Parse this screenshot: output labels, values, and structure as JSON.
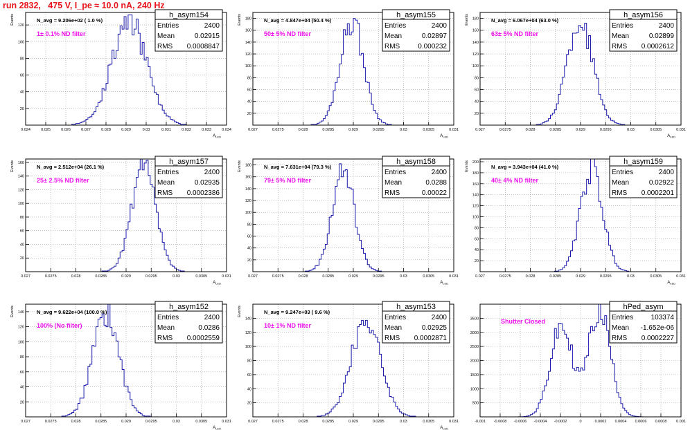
{
  "title": "run 2832,   475 V, I_pe ≈ 10.0 nA, 240 Hz",
  "colors": {
    "hist": "#1a1aaa",
    "title": "#e8141b",
    "filter": "#ee11ee",
    "frame": "#000000",
    "grid": "#9a9a9a"
  },
  "stat_labels": [
    "Entries",
    "Mean",
    "RMS"
  ],
  "chart_data": [
    {
      "type": "histogram",
      "name": "h_asym154",
      "navg": "N_avg = 9.206e+02 ( 1.0 %)",
      "filter": "1± 0.1% ND filter",
      "entries": "2400",
      "mean": "0.02915",
      "rms": "0.0008847",
      "xlabel": "A_LED",
      "ylabel": "Events",
      "xlim": [
        0.024,
        0.034
      ],
      "ylim": [
        0,
        135
      ],
      "xticks": [
        0.024,
        0.025,
        0.026,
        0.027,
        0.028,
        0.029,
        0.03,
        0.031,
        0.032,
        0.033,
        0.034
      ],
      "xticklabels": [
        "0.024",
        "0.025",
        "0.026",
        "0.027",
        "0.028",
        "0.029",
        "0.03",
        "0.031",
        "0.032",
        "0.033",
        "0.034"
      ],
      "yticks": [
        20,
        40,
        60,
        80,
        100,
        120
      ],
      "yticklabels": [
        "20",
        "40",
        "60",
        "80",
        "100",
        "120"
      ],
      "grid": true,
      "dist": {
        "model": "gauss",
        "mean": 0.02915,
        "sigma": 0.00087,
        "peak": 124,
        "seed": 154
      }
    },
    {
      "type": "histogram",
      "name": "h_asym155",
      "navg": "N_avg = 4.847e+04 (50.4 %)",
      "filter": "50± 5% ND filter",
      "entries": "2400",
      "mean": "0.02897",
      "rms": "0.000232",
      "xlabel": "A_LED",
      "ylabel": "Events",
      "xlim": [
        0.027,
        0.031
      ],
      "ylim": [
        0,
        190
      ],
      "xticks": [
        0.027,
        0.0275,
        0.028,
        0.0285,
        0.029,
        0.0295,
        0.03,
        0.0305,
        0.031
      ],
      "xticklabels": [
        "0.027",
        "0.0275",
        "0.028",
        "0.0285",
        "0.029",
        "0.0295",
        "0.03",
        "0.0305",
        "0.031"
      ],
      "yticks": [
        20,
        40,
        60,
        80,
        100,
        120,
        140,
        160,
        180
      ],
      "yticklabels": [
        "20",
        "40",
        "60",
        "80",
        "100",
        "120",
        "140",
        "160",
        "180"
      ],
      "grid": true,
      "dist": {
        "model": "gauss",
        "mean": 0.02897,
        "sigma": 0.000232,
        "peak": 178,
        "seed": 155
      }
    },
    {
      "type": "histogram",
      "name": "h_asym156",
      "navg": "N_avg = 6.067e+04 (63.0 %)",
      "filter": "63± 5% ND filter",
      "entries": "2400",
      "mean": "0.02899",
      "rms": "0.0002612",
      "xlabel": "A_LED",
      "ylabel": "Events",
      "xlim": [
        0.027,
        0.031
      ],
      "ylim": [
        0,
        190
      ],
      "xticks": [
        0.027,
        0.0275,
        0.028,
        0.0285,
        0.029,
        0.0295,
        0.03,
        0.0305,
        0.031
      ],
      "xticklabels": [
        "0.027",
        "0.0275",
        "0.028",
        "0.0285",
        "0.029",
        "0.0295",
        "0.03",
        "0.0305",
        "0.031"
      ],
      "yticks": [
        20,
        40,
        60,
        80,
        100,
        120,
        140,
        160,
        180
      ],
      "yticklabels": [
        "20",
        "40",
        "60",
        "80",
        "100",
        "120",
        "140",
        "160",
        "180"
      ],
      "grid": true,
      "dist": {
        "model": "gauss",
        "mean": 0.02899,
        "sigma": 0.00026,
        "peak": 176,
        "seed": 156
      }
    },
    {
      "type": "histogram",
      "name": "h_asym157",
      "navg": "N_avg = 2.512e+04 (26.1 %)",
      "filter": "25± 2.5% ND filter",
      "entries": "2400",
      "mean": "0.02935",
      "rms": "0.0002386",
      "xlabel": "A_LED",
      "ylabel": "Events",
      "xlim": [
        0.027,
        0.031
      ],
      "ylim": [
        0,
        165
      ],
      "xticks": [
        0.027,
        0.0275,
        0.028,
        0.0285,
        0.029,
        0.0295,
        0.03,
        0.0305,
        0.031
      ],
      "xticklabels": [
        "0.027",
        "0.0275",
        "0.028",
        "0.0285",
        "0.029",
        "0.0295",
        "0.03",
        "0.0305",
        "0.031"
      ],
      "yticks": [
        20,
        40,
        60,
        80,
        100,
        120,
        140,
        160
      ],
      "yticklabels": [
        "20",
        "40",
        "60",
        "80",
        "100",
        "120",
        "140",
        "160"
      ],
      "grid": true,
      "dist": {
        "model": "gauss",
        "mean": 0.02935,
        "sigma": 0.00024,
        "peak": 152,
        "seed": 157
      }
    },
    {
      "type": "histogram",
      "name": "h_asym158",
      "navg": "N_avg = 7.631e+04 (79.3 %)",
      "filter": "79± 5% ND filter",
      "entries": "2400",
      "mean": "0.0288",
      "rms": "0.00022",
      "xlabel": "A_LED",
      "ylabel": "Events",
      "xlim": [
        0.027,
        0.031
      ],
      "ylim": [
        0,
        190
      ],
      "xticks": [
        0.027,
        0.0275,
        0.028,
        0.0285,
        0.029,
        0.0295,
        0.03,
        0.0305,
        0.031
      ],
      "xticklabels": [
        "0.027",
        "0.0275",
        "0.028",
        "0.0285",
        "0.029",
        "0.0295",
        "0.03",
        "0.0305",
        "0.031"
      ],
      "yticks": [
        20,
        40,
        60,
        80,
        100,
        120,
        140,
        160,
        180
      ],
      "yticklabels": [
        "20",
        "40",
        "60",
        "80",
        "100",
        "120",
        "140",
        "160",
        "180"
      ],
      "grid": true,
      "dist": {
        "model": "gauss",
        "mean": 0.0288,
        "sigma": 0.00022,
        "peak": 172,
        "seed": 158
      }
    },
    {
      "type": "histogram",
      "name": "h_asym159",
      "navg": "N_avg = 3.943e+04 (41.0 %)",
      "filter": "40± 4% ND filter",
      "entries": "2400",
      "mean": "0.02922",
      "rms": "0.0002201",
      "xlabel": "A_LED",
      "ylabel": "Events",
      "xlim": [
        0.027,
        0.031
      ],
      "ylim": [
        0,
        205
      ],
      "xticks": [
        0.027,
        0.0275,
        0.028,
        0.0285,
        0.029,
        0.0295,
        0.03,
        0.0305,
        0.031
      ],
      "xticklabels": [
        "0.027",
        "0.0275",
        "0.028",
        "0.0285",
        "0.029",
        "0.0295",
        "0.03",
        "0.0305",
        "0.031"
      ],
      "yticks": [
        20,
        40,
        60,
        80,
        100,
        120,
        140,
        160,
        180,
        200
      ],
      "yticklabels": [
        "20",
        "40",
        "60",
        "80",
        "100",
        "120",
        "140",
        "160",
        "180",
        "200"
      ],
      "grid": true,
      "dist": {
        "model": "gauss",
        "mean": 0.02922,
        "sigma": 0.00022,
        "peak": 188,
        "seed": 159
      }
    },
    {
      "type": "histogram",
      "name": "h_asym152",
      "navg": "N_avg = 9.622e+04 (100.0 %)",
      "filter": "100% (No filter)",
      "entries": "2400",
      "mean": "0.0286",
      "rms": "0.0002559",
      "xlabel": "A_LED",
      "ylabel": "Events",
      "xlim": [
        0.027,
        0.031
      ],
      "ylim": [
        0,
        150
      ],
      "xticks": [
        0.027,
        0.0275,
        0.028,
        0.0285,
        0.029,
        0.0295,
        0.03,
        0.0305,
        0.031
      ],
      "xticklabels": [
        "0.027",
        "0.0275",
        "0.028",
        "0.0285",
        "0.029",
        "0.0295",
        "0.03",
        "0.0305",
        "0.031"
      ],
      "yticks": [
        20,
        40,
        60,
        80,
        100,
        120,
        140
      ],
      "yticklabels": [
        "20",
        "40",
        "60",
        "80",
        "100",
        "120",
        "140"
      ],
      "grid": true,
      "dist": {
        "model": "gauss",
        "mean": 0.0286,
        "sigma": 0.00026,
        "peak": 140,
        "seed": 152
      }
    },
    {
      "type": "histogram",
      "name": "h_asym153",
      "navg": "N_avg = 9.247e+03 ( 9.6 %)",
      "filter": "10± 1% ND filter",
      "entries": "2400",
      "mean": "0.02925",
      "rms": "0.0002871",
      "xlabel": "A_LED",
      "ylabel": "Events",
      "xlim": [
        0.027,
        0.031
      ],
      "ylim": [
        0,
        160
      ],
      "xticks": [
        0.027,
        0.0275,
        0.028,
        0.0285,
        0.029,
        0.0295,
        0.03,
        0.0305,
        0.031
      ],
      "xticklabels": [
        "0.027",
        "0.0275",
        "0.028",
        "0.0285",
        "0.029",
        "0.0295",
        "0.03",
        "0.0305",
        "0.031"
      ],
      "yticks": [
        20,
        40,
        60,
        80,
        100,
        120,
        140
      ],
      "yticklabels": [
        "20",
        "40",
        "60",
        "80",
        "100",
        "120",
        "140"
      ],
      "grid": true,
      "dist": {
        "model": "gauss",
        "mean": 0.02925,
        "sigma": 0.00029,
        "peak": 138,
        "seed": 153
      }
    },
    {
      "type": "histogram",
      "name": "hPed_asym",
      "navg": "",
      "filter": "Shutter Closed",
      "entries": "103374",
      "mean": "-1.652e-06",
      "rms": "0.0002227",
      "xlabel": "",
      "ylabel": "",
      "xlim": [
        -0.001,
        0.001
      ],
      "ylim": [
        0,
        4000
      ],
      "xticks": [
        -0.001,
        -0.0008,
        -0.0006,
        -0.0004,
        -0.0002,
        0,
        0.0002,
        0.0004,
        0.0006,
        0.0008,
        0.001
      ],
      "xticklabels": [
        "-0.001",
        "-0.0008",
        "-0.0006",
        "-0.0004",
        "-0.0002",
        "0",
        "0.0002",
        "0.0004",
        "0.0006",
        "0.0008",
        "0.001"
      ],
      "yticks": [
        500,
        1000,
        1500,
        2000,
        2500,
        3000,
        3500
      ],
      "yticklabels": [
        "500",
        "1000",
        "1500",
        "2000",
        "2500",
        "3000",
        "3500"
      ],
      "grid": true,
      "dist": {
        "model": "double",
        "mean1": -0.00019,
        "mean2": 0.00019,
        "sigma": 0.00011,
        "peak1": 3200,
        "peak2": 3800,
        "seed": 160
      }
    }
  ]
}
